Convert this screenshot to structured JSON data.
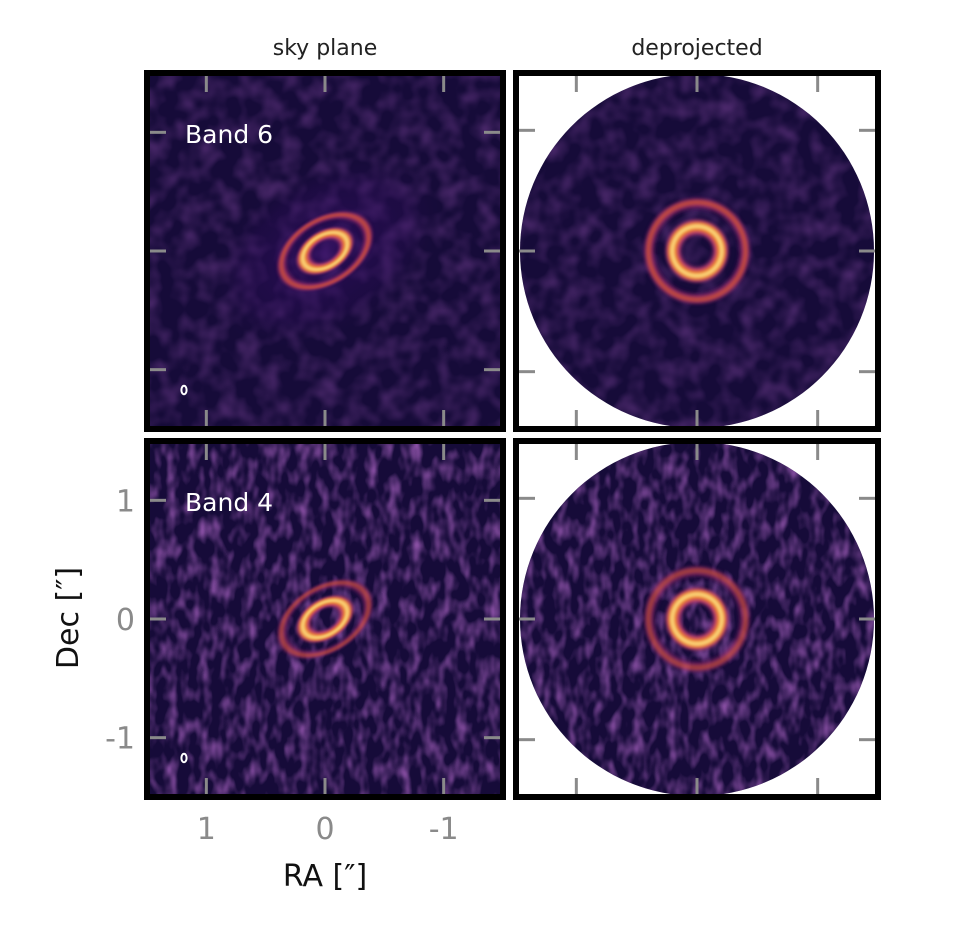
{
  "chart_data": {
    "type": "heatmap",
    "layout": "2x2 image grid",
    "columns": [
      "sky plane",
      "deprojected"
    ],
    "rows": [
      "Band 6",
      "Band 4"
    ],
    "xlabel": "RA [″]",
    "ylabel": "Dec [″]",
    "xlim": [
      1.5,
      -1.5
    ],
    "ylim": [
      -1.5,
      1.5
    ],
    "xticks": [
      1,
      0,
      -1
    ],
    "xtick_labels": [
      "1",
      "0",
      "-1"
    ],
    "yticks": [
      1,
      0,
      -1
    ],
    "ytick_labels": [
      "1",
      "0",
      "-1"
    ],
    "colormap": "inferno",
    "panels": [
      {
        "row": "Band 6",
        "column": "sky plane",
        "label": "Band 6",
        "rings_arcsec": [
          0.2,
          0.4
        ],
        "ring_peak_relative": [
          1.0,
          0.65
        ],
        "diffuse_outer_emission": true,
        "noise": "low",
        "beam": true,
        "inclination_deg": 50,
        "position_angle_deg": 58
      },
      {
        "row": "Band 6",
        "column": "deprojected",
        "rings_arcsec": [
          0.2,
          0.4
        ],
        "ring_peak_relative": [
          1.0,
          0.65
        ],
        "disk_radius_arcsec": 1.5,
        "noise": "low"
      },
      {
        "row": "Band 4",
        "column": "sky plane",
        "label": "Band 4",
        "rings_arcsec": [
          0.2,
          0.4
        ],
        "ring_peak_relative": [
          1.0,
          0.5
        ],
        "noise": "high",
        "beam": true,
        "inclination_deg": 50,
        "position_angle_deg": 58
      },
      {
        "row": "Band 4",
        "column": "deprojected",
        "rings_arcsec": [
          0.2,
          0.4
        ],
        "ring_peak_relative": [
          1.0,
          0.5
        ],
        "disk_radius_arcsec": 1.5,
        "noise": "high"
      }
    ],
    "colors": {
      "background": "#160b39",
      "frame": "#000000",
      "tick": "#8a8a8a",
      "beam": "#ffffff"
    }
  }
}
